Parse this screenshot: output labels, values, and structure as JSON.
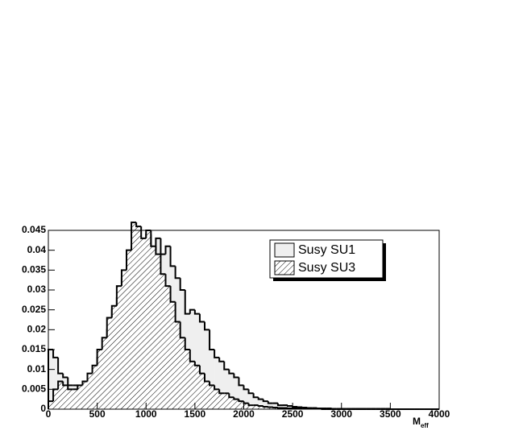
{
  "chart_data": {
    "type": "histogram",
    "x_label": "M",
    "x_label_subscript": "eff",
    "bins": [
      0,
      50,
      100,
      150,
      200,
      250,
      300,
      350,
      400,
      450,
      500,
      550,
      600,
      650,
      700,
      750,
      800,
      850,
      900,
      950,
      1000,
      1050,
      1100,
      1150,
      1200,
      1250,
      1300,
      1350,
      1400,
      1450,
      1500,
      1550,
      1600,
      1650,
      1700,
      1750,
      1800,
      1850,
      1900,
      1950,
      2000,
      2050,
      2100,
      2150,
      2200,
      2250,
      2300,
      2350,
      2400,
      2450,
      2500,
      2550,
      2600,
      2650,
      2700,
      2750,
      2800,
      2850,
      2900,
      2950,
      3000,
      3050,
      3100,
      3150,
      3200,
      3250,
      3300,
      3350,
      3400,
      3450,
      3500,
      3550,
      3600,
      3650,
      3700,
      3750,
      3800,
      3850,
      3900,
      3950,
      4000
    ],
    "series": [
      {
        "name": "Susy SU1",
        "color": "#efefef",
        "pattern": "solid",
        "values": [
          0.015,
          0.013,
          0.009,
          0.008,
          0.006,
          0.006,
          0.005,
          0.006,
          0.007,
          0.009,
          0.013,
          0.015,
          0.02,
          0.025,
          0.028,
          0.033,
          0.036,
          0.041,
          0.043,
          0.036,
          0.044,
          0.04,
          0.043,
          0.039,
          0.041,
          0.036,
          0.033,
          0.03,
          0.024,
          0.025,
          0.024,
          0.022,
          0.02,
          0.015,
          0.013,
          0.012,
          0.01,
          0.009,
          0.008,
          0.006,
          0.005,
          0.004,
          0.003,
          0.0025,
          0.002,
          0.0015,
          0.0015,
          0.001,
          0.001,
          0.0008,
          0.0006,
          0.0005,
          0.0004,
          0.0003,
          0.0003,
          0.0002,
          0.0002,
          0.0002,
          0.0001,
          0.0001,
          0.0001,
          0.0001,
          0.0001,
          0.0001,
          0.0001,
          0.0001,
          0.0001,
          0.0001,
          0.0001,
          0.0001,
          0,
          0,
          0,
          0,
          0,
          0,
          0,
          0,
          0,
          0
        ]
      },
      {
        "name": "Susy SU3",
        "color": "#000000",
        "pattern": "hatch",
        "values": [
          0.002,
          0.005,
          0.007,
          0.006,
          0.005,
          0.005,
          0.006,
          0.007,
          0.009,
          0.011,
          0.015,
          0.018,
          0.023,
          0.026,
          0.031,
          0.035,
          0.04,
          0.047,
          0.046,
          0.043,
          0.045,
          0.041,
          0.039,
          0.034,
          0.031,
          0.027,
          0.022,
          0.018,
          0.015,
          0.012,
          0.011,
          0.009,
          0.007,
          0.006,
          0.005,
          0.004,
          0.004,
          0.003,
          0.0025,
          0.002,
          0.0015,
          0.001,
          0.001,
          0.0008,
          0.0006,
          0.0005,
          0.0004,
          0.0003,
          0.0003,
          0.0002,
          0.0002,
          0.0001,
          0.0001,
          0.0001,
          0.0001,
          0.0001,
          0,
          0,
          0,
          0,
          0,
          0,
          0,
          0,
          0,
          0,
          0,
          0,
          0,
          0,
          0,
          0,
          0,
          0,
          0,
          0,
          0,
          0,
          0,
          0
        ]
      }
    ],
    "xlim": [
      0,
      4000
    ],
    "xticks": [
      0,
      500,
      1000,
      1500,
      2000,
      2500,
      3000,
      3500,
      4000
    ],
    "ylim": [
      0,
      0.045
    ],
    "yticks": [
      0,
      0.005,
      0.01,
      0.015,
      0.02,
      0.025,
      0.03,
      0.035,
      0.04,
      0.045
    ],
    "legend": "upper-right"
  }
}
